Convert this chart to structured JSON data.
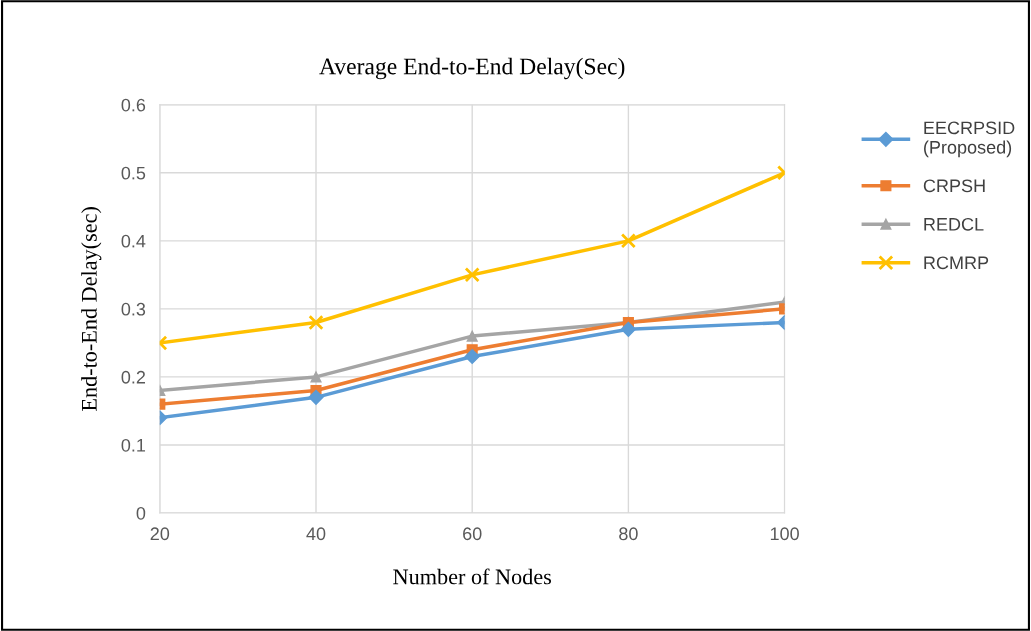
{
  "chart_data": {
    "type": "line",
    "title": "Average End-to-End Delay(Sec)",
    "xlabel": "Number of Nodes",
    "ylabel": "End-to-End Delay(sec)",
    "categories": [
      "20",
      "40",
      "60",
      "80",
      "100"
    ],
    "series": [
      {
        "name": "EECRPSID (Proposed)",
        "color": "#5b9bd5",
        "marker": "diamond",
        "values": [
          0.14,
          0.17,
          0.23,
          0.27,
          0.28
        ]
      },
      {
        "name": "CRPSH",
        "color": "#ed7d31",
        "marker": "square",
        "values": [
          0.16,
          0.18,
          0.24,
          0.28,
          0.3
        ]
      },
      {
        "name": "REDCL",
        "color": "#a5a5a5",
        "marker": "triangle",
        "values": [
          0.18,
          0.2,
          0.26,
          0.28,
          0.31
        ]
      },
      {
        "name": "RCMRP",
        "color": "#ffc000",
        "marker": "cross",
        "values": [
          0.25,
          0.28,
          0.35,
          0.4,
          0.5
        ]
      }
    ],
    "ylim": [
      0,
      0.6
    ],
    "yticks": [
      {
        "value": 0,
        "label": "0"
      },
      0.1,
      0.2,
      0.3,
      0.4,
      0.5,
      0.6
    ],
    "grid": true,
    "legend": "right",
    "line_style": "solid"
  }
}
